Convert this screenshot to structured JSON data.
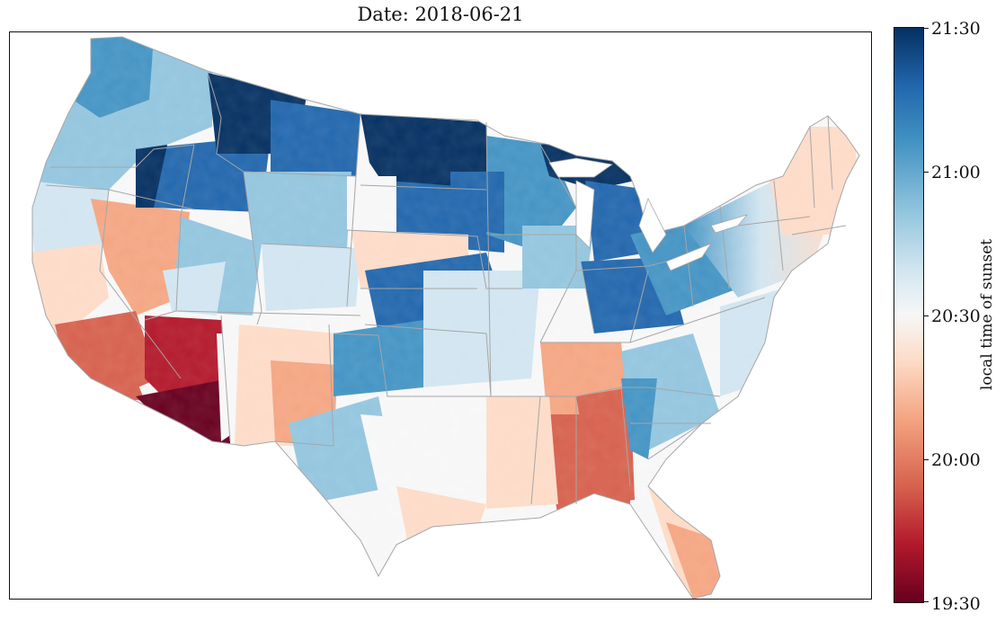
{
  "title": "Date: 2018-06-21",
  "colorbar": {
    "label": "local time of sunset",
    "ticks": [
      "21:30",
      "21:00",
      "20:30",
      "20:00",
      "19:30"
    ],
    "colormap": "RdBu",
    "colors": [
      "#053061",
      "#2166ac",
      "#4393c3",
      "#92c5de",
      "#d1e5f0",
      "#f7f7f7",
      "#fddbc7",
      "#f4a582",
      "#d6604d",
      "#b2182b",
      "#67001f"
    ]
  },
  "map": {
    "region": "contiguous United States",
    "unit": "county",
    "state_border_color": "#a6a6a6"
  }
}
